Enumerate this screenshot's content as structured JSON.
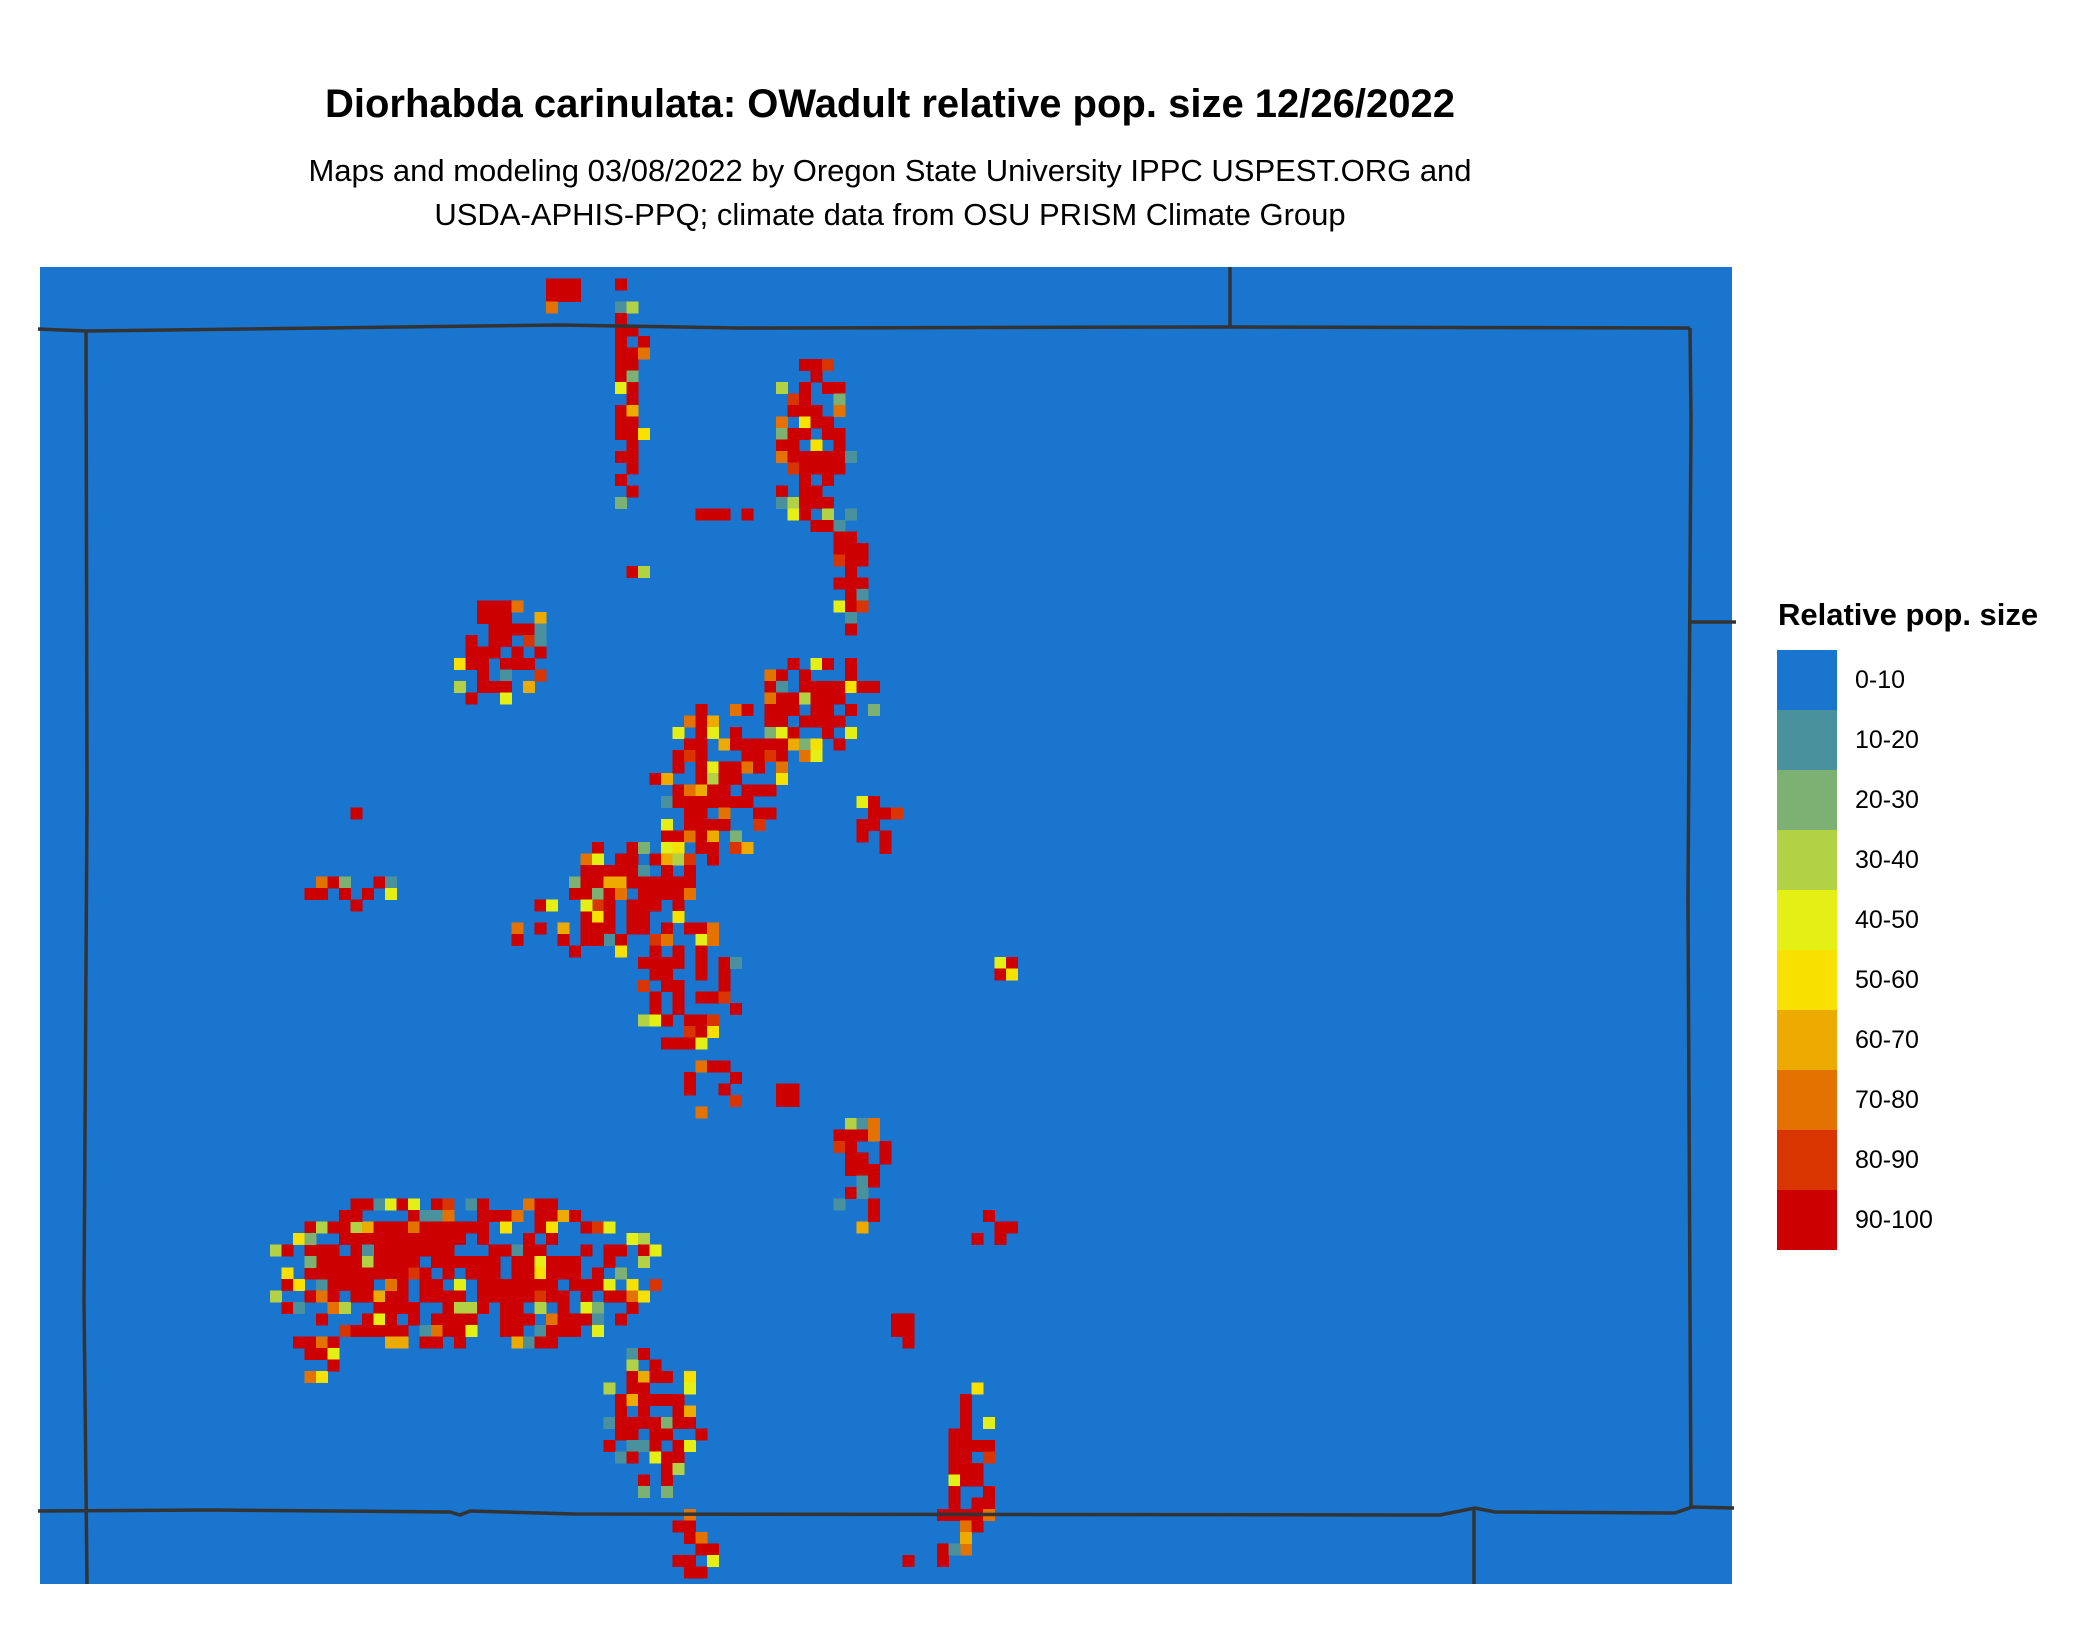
{
  "title": "Diorhabda carinulata: OWadult relative pop. size 12/26/2022",
  "subtitle_line1": "Maps and modeling 03/08/2022 by Oregon State University IPPC USPEST.ORG and",
  "subtitle_line2": "USDA-APHIS-PPQ; climate data from OSU PRISM Climate Group",
  "legend": {
    "title": "Relative pop. size",
    "items": [
      {
        "label": "0-10",
        "color": "#1a75cf"
      },
      {
        "label": "10-20",
        "color": "#4a919e"
      },
      {
        "label": "20-30",
        "color": "#7db073"
      },
      {
        "label": "30-40",
        "color": "#b3d145"
      },
      {
        "label": "40-50",
        "color": "#e3ef15"
      },
      {
        "label": "50-60",
        "color": "#f8e100"
      },
      {
        "label": "60-70",
        "color": "#edaa00"
      },
      {
        "label": "70-80",
        "color": "#e37200"
      },
      {
        "label": "80-90",
        "color": "#d93500"
      },
      {
        "label": "90-100",
        "color": "#cc0000"
      }
    ]
  },
  "map": {
    "background_class": "0-10",
    "boundary_color": "#333333"
  }
}
